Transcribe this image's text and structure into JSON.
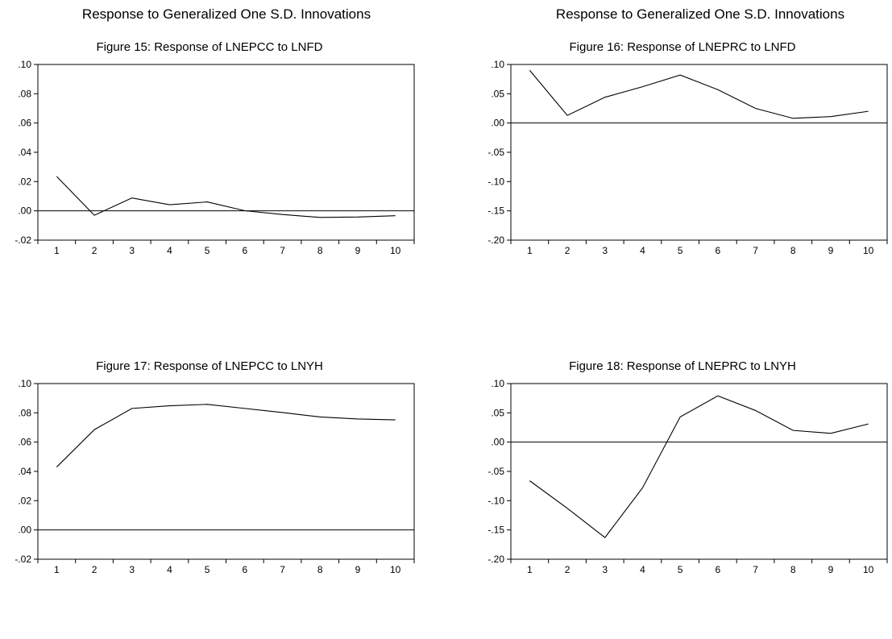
{
  "titles": {
    "left": "Response to Generalized One S.D. Innovations",
    "right": "Response to Generalized One S.D. Innovations"
  },
  "chart_data": [
    {
      "type": "line",
      "title": "Figure 15: Response of LNEPCC to LNFD",
      "x": [
        1,
        2,
        3,
        4,
        5,
        6,
        7,
        8,
        9,
        10
      ],
      "series": [
        {
          "values": [
            0.0235,
            -0.003,
            0.0088,
            0.0042,
            0.0061,
            0.0001,
            -0.0025,
            -0.0045,
            -0.0042,
            -0.0033
          ]
        }
      ],
      "ylim": [
        -0.02,
        0.1
      ],
      "yticks": [
        0.1,
        0.08,
        0.06,
        0.04,
        0.02,
        0.0,
        -0.02
      ],
      "ytick_labels": [
        ".10",
        ".08",
        ".06",
        ".04",
        ".02",
        ".00",
        "-.02"
      ],
      "xticks": [
        "1",
        "2",
        "3",
        "4",
        "5",
        "6",
        "7",
        "8",
        "9",
        "10"
      ],
      "zero_line": true
    },
    {
      "type": "line",
      "title": "Figure 16: Response of LNEPRC to LNFD",
      "x": [
        1,
        2,
        3,
        4,
        5,
        6,
        7,
        8,
        9,
        10
      ],
      "series": [
        {
          "values": [
            0.09,
            0.013,
            0.044,
            0.062,
            0.082,
            0.057,
            0.025,
            0.008,
            0.011,
            0.02
          ]
        }
      ],
      "ylim": [
        -0.2,
        0.1
      ],
      "yticks": [
        0.1,
        0.05,
        0.0,
        -0.05,
        -0.1,
        -0.15,
        -0.2
      ],
      "ytick_labels": [
        ".10",
        ".05",
        ".00",
        "-.05",
        "-.10",
        "-.15",
        "-.20"
      ],
      "xticks": [
        "1",
        "2",
        "3",
        "4",
        "5",
        "6",
        "7",
        "8",
        "9",
        "10"
      ],
      "zero_line": true
    },
    {
      "type": "line",
      "title": "Figure 17: Response of LNEPCC to LNYH",
      "x": [
        1,
        2,
        3,
        4,
        5,
        6,
        7,
        8,
        9,
        10
      ],
      "series": [
        {
          "values": [
            0.043,
            0.0685,
            0.083,
            0.0848,
            0.0858,
            0.083,
            0.0802,
            0.0772,
            0.0758,
            0.0752
          ]
        }
      ],
      "ylim": [
        -0.02,
        0.1
      ],
      "yticks": [
        0.1,
        0.08,
        0.06,
        0.04,
        0.02,
        0.0,
        -0.02
      ],
      "ytick_labels": [
        ".10",
        ".08",
        ".06",
        ".04",
        ".02",
        ".00",
        "-.02"
      ],
      "xticks": [
        "1",
        "2",
        "3",
        "4",
        "5",
        "6",
        "7",
        "8",
        "9",
        "10"
      ],
      "zero_line": true
    },
    {
      "type": "line",
      "title": "Figure 18: Response of LNEPRC to LNYH",
      "x": [
        1,
        2,
        3,
        4,
        5,
        6,
        7,
        8,
        9,
        10
      ],
      "series": [
        {
          "values": [
            -0.066,
            -0.113,
            -0.163,
            -0.078,
            0.043,
            0.079,
            0.054,
            0.02,
            0.015,
            0.031
          ]
        }
      ],
      "ylim": [
        -0.2,
        0.1
      ],
      "yticks": [
        0.1,
        0.05,
        0.0,
        -0.05,
        -0.1,
        -0.15,
        -0.2
      ],
      "ytick_labels": [
        ".10",
        ".05",
        ".00",
        "-.05",
        "-.10",
        "-.15",
        "-.20"
      ],
      "xticks": [
        "1",
        "2",
        "3",
        "4",
        "5",
        "6",
        "7",
        "8",
        "9",
        "10"
      ],
      "zero_line": true
    }
  ]
}
